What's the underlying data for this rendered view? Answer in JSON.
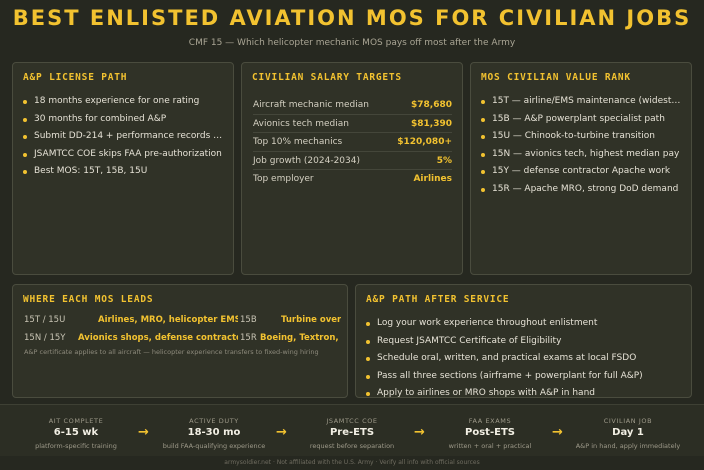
{
  "header": {
    "title": "BEST ENLISTED AVIATION MOS FOR CIVILIAN JOBS",
    "subtitle": "CMF 15 — Which helicopter mechanic MOS pays off most after the Army"
  },
  "ap_license": {
    "title": "A&P LICENSE PATH",
    "items": [
      "18 months experience for one rating",
      "30 months for combined A&P",
      "Submit DD-214 + performance records to …",
      "JSAMTCC COE skips FAA pre-authorization",
      "Best MOS: 15T, 15B, 15U"
    ]
  },
  "salary": {
    "title": "CIVILIAN SALARY TARGETS",
    "rows": [
      {
        "label": "Aircraft mechanic median",
        "value": "$78,680"
      },
      {
        "label": "Avionics tech median",
        "value": "$81,390"
      },
      {
        "label": "Top 10% mechanics",
        "value": "$120,080+"
      },
      {
        "label": "Job growth (2024-2034)",
        "value": "5%"
      },
      {
        "label": "Top employer",
        "value": "Airlines"
      }
    ]
  },
  "value_rank": {
    "title": "MOS CIVILIAN VALUE RANK",
    "items": [
      "15T — airline/EMS maintenance (widest de…",
      "15B — A&P powerplant specialist path",
      "15U — Chinook-to-turbine transition",
      "15N — avionics tech, highest median pay",
      "15Y — defense contractor Apache work",
      "15R — Apache MRO, strong DoD demand"
    ]
  },
  "leads": {
    "title": "WHERE EACH MOS LEADS",
    "rows": [
      [
        {
          "mos": "15T / 15U",
          "dest": "Airlines, MRO, helicopter EMS"
        },
        {
          "mos": "15B",
          "dest": "Turbine overhaul"
        }
      ],
      [
        {
          "mos": "15N / 15Y",
          "dest": "Avionics shops, defense contractors"
        },
        {
          "mos": "15R",
          "dest": "Boeing, Textron, fore"
        }
      ]
    ],
    "note": "A&P certificate applies to all aircraft — helicopter experience transfers to fixed-wing hiring"
  },
  "after_service": {
    "title": "A&P PATH AFTER SERVICE",
    "items": [
      "Log your work experience throughout enlistment",
      "Request JSAMTCC Certificate of Eligibility",
      "Schedule oral, written, and practical exams at local FSDO",
      "Pass all three sections (airframe + powerplant for full A&P)",
      "Apply to airlines or MRO shops with A&P in hand"
    ]
  },
  "timeline": {
    "arrow": "→",
    "steps": [
      {
        "label": "AIT COMPLETE",
        "value": "6-15 wk",
        "note": "platform-specific training"
      },
      {
        "label": "ACTIVE DUTY",
        "value": "18-30 mo",
        "note": "build FAA-qualifying experience"
      },
      {
        "label": "JSAMTCC COE",
        "value": "Pre-ETS",
        "note": "request before separation"
      },
      {
        "label": "FAA EXAMS",
        "value": "Post-ETS",
        "note": "written + oral + practical"
      },
      {
        "label": "CIVILIAN JOB",
        "value": "Day 1",
        "note": "A&P in hand, apply immediately"
      }
    ]
  },
  "footer": {
    "text": "armysoldier.net · Not affiliated with the U.S. Army · Verify all info with official sources"
  },
  "colors": {
    "accent": "#f2c230",
    "background": "#262820",
    "panel": "#303227"
  }
}
